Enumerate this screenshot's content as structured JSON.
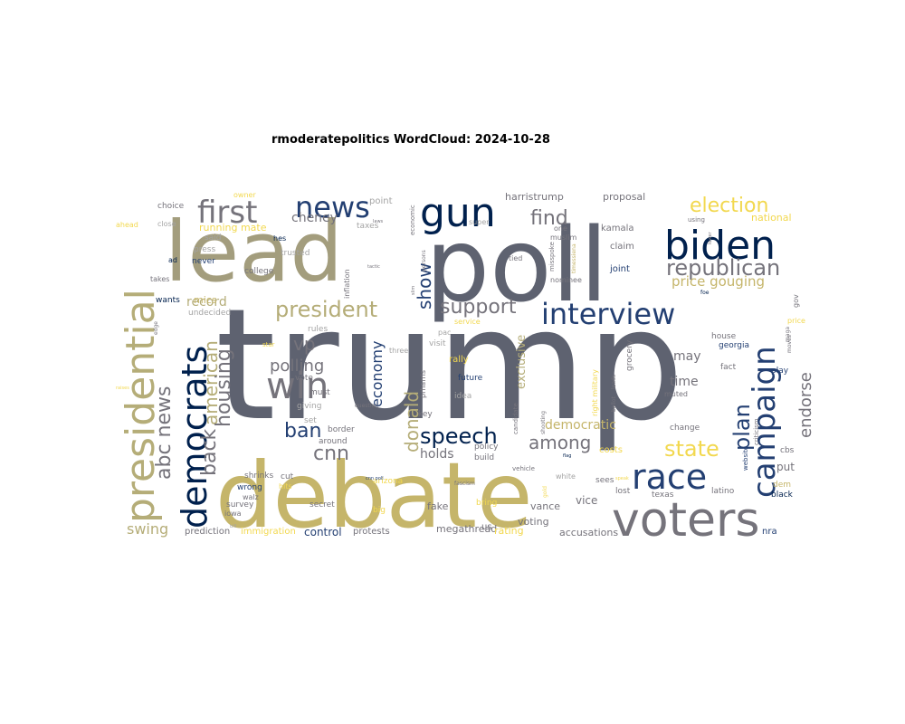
{
  "chart_data": {
    "type": "wordcloud",
    "title": "rmoderatepolitics WordCloud: 2024-10-28",
    "colors": {
      "navy": "#00204d",
      "blue": "#233f72",
      "slate": "#5e6270",
      "gray": "#75737b",
      "olive": "#a39d7d",
      "tan": "#b5ad78",
      "gold": "#c5b56a",
      "yellow": "#f2d84f",
      "lightgray": "#a4a4a4"
    },
    "words": [
      {
        "text": "trump",
        "weight": 100,
        "color": "slate"
      },
      {
        "text": "poll",
        "weight": 80,
        "color": "slate"
      },
      {
        "text": "lead",
        "weight": 76,
        "color": "olive"
      },
      {
        "text": "debate",
        "weight": 74,
        "color": "gold"
      },
      {
        "text": "voters",
        "weight": 40,
        "color": "gray"
      },
      {
        "text": "presidential",
        "weight": 34,
        "color": "tan"
      },
      {
        "text": "biden",
        "weight": 38,
        "color": "navy"
      },
      {
        "text": "democrats",
        "weight": 30,
        "color": "navy"
      },
      {
        "text": "gun",
        "weight": 32,
        "color": "navy"
      },
      {
        "text": "campaign",
        "weight": 28,
        "color": "blue"
      },
      {
        "text": "race",
        "weight": 30,
        "color": "blue"
      },
      {
        "text": "interview",
        "weight": 28,
        "color": "blue"
      },
      {
        "text": "news",
        "weight": 26,
        "color": "blue"
      },
      {
        "text": "first",
        "weight": 28,
        "color": "gray"
      },
      {
        "text": "republican",
        "weight": 20,
        "color": "gray"
      },
      {
        "text": "election",
        "weight": 18,
        "color": "yellow"
      },
      {
        "text": "president",
        "weight": 20,
        "color": "tan"
      },
      {
        "text": "support",
        "weight": 17,
        "color": "gray"
      },
      {
        "text": "speech",
        "weight": 18,
        "color": "navy"
      },
      {
        "text": "win",
        "weight": 20,
        "color": "gray"
      },
      {
        "text": "state",
        "weight": 18,
        "color": "yellow"
      },
      {
        "text": "plan",
        "weight": 17,
        "color": "blue"
      },
      {
        "text": "show",
        "weight": 17,
        "color": "blue"
      },
      {
        "text": "find",
        "weight": 16,
        "color": "gray"
      },
      {
        "text": "among",
        "weight": 15,
        "color": "gray"
      },
      {
        "text": "abc news",
        "weight": 18,
        "color": "gray"
      },
      {
        "text": "american",
        "weight": 16,
        "color": "tan"
      },
      {
        "text": "housing",
        "weight": 16,
        "color": "gray"
      },
      {
        "text": "back",
        "weight": 16,
        "color": "gray"
      },
      {
        "text": "ban",
        "weight": 16,
        "color": "blue"
      },
      {
        "text": "cnn",
        "weight": 16,
        "color": "gray"
      },
      {
        "text": "vp",
        "weight": 15,
        "color": "gray"
      },
      {
        "text": "donald",
        "weight": 15,
        "color": "tan"
      },
      {
        "text": "economy",
        "weight": 13,
        "color": "blue"
      },
      {
        "text": "endorse",
        "weight": 14,
        "color": "gray"
      },
      {
        "text": "polling",
        "weight": 13,
        "color": "gray"
      },
      {
        "text": "price gouging",
        "weight": 11,
        "color": "gold"
      },
      {
        "text": "swing",
        "weight": 11,
        "color": "tan"
      },
      {
        "text": "cheney",
        "weight": 10,
        "color": "gray"
      },
      {
        "text": "record",
        "weight": 10,
        "color": "tan"
      },
      {
        "text": "democratic",
        "weight": 9,
        "color": "gold"
      },
      {
        "text": "holds",
        "weight": 9,
        "color": "gray"
      },
      {
        "text": "exclusive",
        "weight": 8,
        "color": "tan"
      },
      {
        "text": "time",
        "weight": 9,
        "color": "gray"
      },
      {
        "text": "may",
        "weight": 9,
        "color": "gray"
      },
      {
        "text": "put",
        "weight": 8,
        "color": "gray"
      },
      {
        "text": "control",
        "weight": 8,
        "color": "blue"
      },
      {
        "text": "vance",
        "weight": 7,
        "color": "gray"
      },
      {
        "text": "fake",
        "weight": 7,
        "color": "gray"
      },
      {
        "text": "vice",
        "weight": 7,
        "color": "gray"
      },
      {
        "text": "voting",
        "weight": 6,
        "color": "gray"
      },
      {
        "text": "megathread",
        "weight": 6,
        "color": "gray"
      },
      {
        "text": "accusations",
        "weight": 6,
        "color": "gray"
      },
      {
        "text": "rating",
        "weight": 6,
        "color": "yellow"
      },
      {
        "text": "prediction",
        "weight": 6,
        "color": "gray"
      },
      {
        "text": "immigration",
        "weight": 6,
        "color": "yellow"
      },
      {
        "text": "protests",
        "weight": 6,
        "color": "gray"
      },
      {
        "text": "running mate",
        "weight": 7,
        "color": "yellow"
      },
      {
        "text": "harristrump",
        "weight": 7,
        "color": "gray"
      },
      {
        "text": "proposal",
        "weight": 7,
        "color": "gray"
      },
      {
        "text": "national",
        "weight": 7,
        "color": "yellow"
      },
      {
        "text": "kamala",
        "weight": 6,
        "color": "gray"
      },
      {
        "text": "claim",
        "weight": 6,
        "color": "gray"
      },
      {
        "text": "joint",
        "weight": 6,
        "color": "blue"
      },
      {
        "text": "mics",
        "weight": 6,
        "color": "gold"
      },
      {
        "text": "press",
        "weight": 5,
        "color": "lightgray"
      },
      {
        "text": "college",
        "weight": 5,
        "color": "gray"
      },
      {
        "text": "never",
        "weight": 5,
        "color": "blue"
      },
      {
        "text": "trusted",
        "weight": 5,
        "color": "lightgray"
      },
      {
        "text": "said",
        "weight": 5,
        "color": "lightgray"
      },
      {
        "text": "taxes",
        "weight": 5,
        "color": "lightgray"
      },
      {
        "text": "point",
        "weight": 6,
        "color": "lightgray"
      },
      {
        "text": "choice",
        "weight": 5,
        "color": "gray"
      },
      {
        "text": "wants",
        "weight": 5,
        "color": "navy"
      },
      {
        "text": "undecided",
        "weight": 5,
        "color": "lightgray"
      },
      {
        "text": "rules",
        "weight": 5,
        "color": "lightgray"
      },
      {
        "text": "vote",
        "weight": 5,
        "color": "gray"
      },
      {
        "text": "must",
        "weight": 5,
        "color": "gray"
      },
      {
        "text": "giving",
        "weight": 5,
        "color": "lightgray"
      },
      {
        "text": "set",
        "weight": 5,
        "color": "lightgray"
      },
      {
        "text": "border",
        "weight": 5,
        "color": "gray"
      },
      {
        "text": "around",
        "weight": 5,
        "color": "gray"
      },
      {
        "text": "secret",
        "weight": 5,
        "color": "gray"
      },
      {
        "text": "survey",
        "weight": 5,
        "color": "gray"
      },
      {
        "text": "shrinks",
        "weight": 5,
        "color": "gray"
      },
      {
        "text": "wrong",
        "weight": 5,
        "color": "blue"
      },
      {
        "text": "cut",
        "weight": 5,
        "color": "gray"
      },
      {
        "text": "visit",
        "weight": 5,
        "color": "lightgray"
      },
      {
        "text": "future",
        "weight": 5,
        "color": "blue"
      },
      {
        "text": "idea",
        "weight": 5,
        "color": "lightgray"
      },
      {
        "text": "key",
        "weight": 5,
        "color": "gray"
      },
      {
        "text": "policy",
        "weight": 5,
        "color": "gray"
      },
      {
        "text": "build",
        "weight": 5,
        "color": "gray"
      },
      {
        "text": "arizona",
        "weight": 5,
        "color": "yellow"
      },
      {
        "text": "bring",
        "weight": 5,
        "color": "yellow"
      },
      {
        "text": "us",
        "weight": 6,
        "color": "gray"
      },
      {
        "text": "big",
        "weight": 5,
        "color": "yellow"
      },
      {
        "text": "nra",
        "weight": 6,
        "color": "blue"
      },
      {
        "text": "black",
        "weight": 5,
        "color": "navy"
      },
      {
        "text": "dem",
        "weight": 5,
        "color": "gold"
      },
      {
        "text": "latino",
        "weight": 5,
        "color": "gray"
      },
      {
        "text": "texas",
        "weight": 5,
        "color": "gray"
      },
      {
        "text": "lost",
        "weight": 5,
        "color": "gray"
      },
      {
        "text": "cbs",
        "weight": 5,
        "color": "gray"
      },
      {
        "text": "georgia",
        "weight": 5,
        "color": "blue"
      },
      {
        "text": "play",
        "weight": 5,
        "color": "blue"
      },
      {
        "text": "fact",
        "weight": 5,
        "color": "gray"
      },
      {
        "text": "house",
        "weight": 5,
        "color": "gray"
      },
      {
        "text": "change",
        "weight": 5,
        "color": "gray"
      },
      {
        "text": "muted",
        "weight": 4,
        "color": "gray"
      },
      {
        "text": "grocery",
        "weight": 5,
        "color": "gray"
      },
      {
        "text": "costs",
        "weight": 5,
        "color": "yellow"
      },
      {
        "text": "sees",
        "weight": 5,
        "color": "gray"
      },
      {
        "text": "white",
        "weight": 4,
        "color": "lightgray"
      },
      {
        "text": "rally",
        "weight": 5,
        "color": "yellow"
      },
      {
        "text": "three",
        "weight": 4,
        "color": "lightgray"
      },
      {
        "text": "pac",
        "weight": 4,
        "color": "lightgray"
      },
      {
        "text": "service",
        "weight": 4,
        "color": "yellow"
      },
      {
        "text": "tied",
        "weight": 4,
        "color": "gray"
      },
      {
        "text": "nominee",
        "weight": 4,
        "color": "gray"
      },
      {
        "text": "one",
        "weight": 4,
        "color": "gray"
      },
      {
        "text": "muslim",
        "weight": 4,
        "color": "gray"
      },
      {
        "text": "super",
        "weight": 4,
        "color": "lightgray"
      },
      {
        "text": "economic",
        "weight": 4,
        "color": "gray"
      },
      {
        "text": "hes",
        "weight": 4,
        "color": "navy"
      },
      {
        "text": "ad",
        "weight": 4,
        "color": "navy"
      },
      {
        "text": "owner",
        "weight": 4,
        "color": "yellow"
      },
      {
        "text": "ahead",
        "weight": 4,
        "color": "yellow"
      },
      {
        "text": "close",
        "weight": 4,
        "color": "lightgray"
      },
      {
        "text": "takes",
        "weight": 4,
        "color": "gray"
      },
      {
        "text": "candidate",
        "weight": 4,
        "color": "gray"
      },
      {
        "text": "vehicle",
        "weight": 4,
        "color": "gray"
      },
      {
        "text": "website",
        "weight": 4,
        "color": "blue"
      },
      {
        "text": "criticism",
        "weight": 4,
        "color": "gray"
      },
      {
        "text": "iowa",
        "weight": 4,
        "color": "gray"
      },
      {
        "text": "fascism",
        "weight": 3,
        "color": "gray"
      },
      {
        "text": "persons",
        "weight": 3,
        "color": "gray"
      },
      {
        "text": "shooting",
        "weight": 3,
        "color": "gray"
      },
      {
        "text": "right military",
        "weight": 4,
        "color": "yellow"
      },
      {
        "text": "prharris",
        "weight": 4,
        "color": "gray"
      },
      {
        "text": "question",
        "weight": 3,
        "color": "gray"
      },
      {
        "text": "inflation",
        "weight": 4,
        "color": "gray"
      },
      {
        "text": "timessiena",
        "weight": 3,
        "color": "gold"
      },
      {
        "text": "misspoke",
        "weight": 4,
        "color": "gray"
      },
      {
        "text": "price",
        "weight": 4,
        "color": "yellow"
      },
      {
        "text": "edge",
        "weight": 3,
        "color": "gray"
      },
      {
        "text": "maga",
        "weight": 3,
        "color": "gray"
      },
      {
        "text": "gov",
        "weight": 4,
        "color": "gray"
      },
      {
        "text": "foe",
        "weight": 3,
        "color": "navy"
      },
      {
        "text": "hits",
        "weight": 4,
        "color": "yellow"
      },
      {
        "text": "gold",
        "weight": 3,
        "color": "yellow"
      },
      {
        "text": "ballot",
        "weight": 3,
        "color": "gray"
      },
      {
        "text": "leads",
        "weight": 3,
        "color": "gray"
      },
      {
        "text": "moves",
        "weight": 3,
        "color": "gray"
      },
      {
        "text": "laws",
        "weight": 3,
        "color": "gray"
      },
      {
        "text": "tactic",
        "weight": 3,
        "color": "gray"
      },
      {
        "text": "slim",
        "weight": 3,
        "color": "gray"
      },
      {
        "text": "star",
        "weight": 3,
        "color": "yellow"
      },
      {
        "text": "flag",
        "weight": 3,
        "color": "navy"
      },
      {
        "text": "walz",
        "weight": 4,
        "color": "gray"
      },
      {
        "text": "raises",
        "weight": 3,
        "color": "yellow"
      },
      {
        "text": "cnn poll",
        "weight": 3,
        "color": "blue"
      },
      {
        "text": "using",
        "weight": 3,
        "color": "gray"
      },
      {
        "text": "lower",
        "weight": 3,
        "color": "gray"
      },
      {
        "text": "bill",
        "weight": 3,
        "color": "lightgray"
      },
      {
        "text": "speak",
        "weight": 3,
        "color": "yellow"
      }
    ]
  }
}
